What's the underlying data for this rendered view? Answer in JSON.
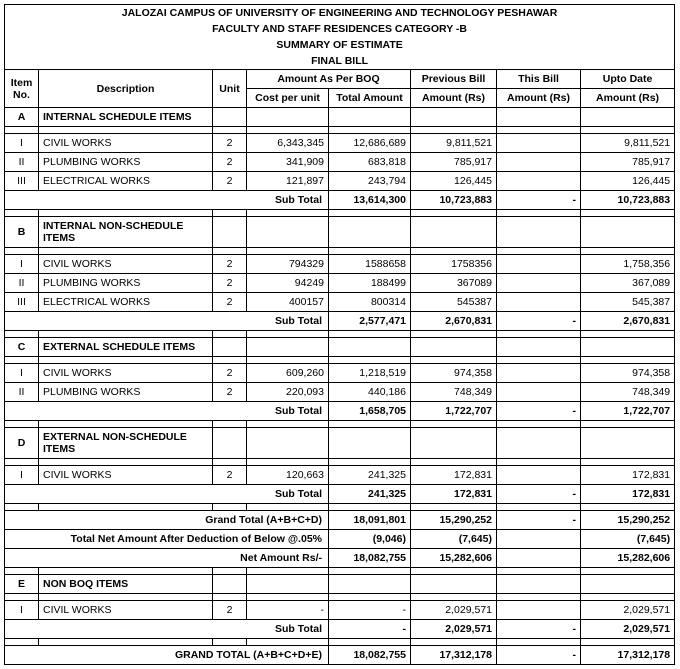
{
  "title1": "JALOZAI CAMPUS OF UNIVERSITY OF ENGINEERING AND TECHNOLOGY PESHAWAR",
  "title2": "FACULTY AND STAFF RESIDENCES CATEGORY -B",
  "title3": "SUMMARY OF ESTIMATE",
  "title4": "FINAL BILL",
  "colHeaders": {
    "itemNo": "Item No.",
    "desc": "Description",
    "unit": "Unit",
    "amountAsPerBOQ": "Amount As Per BOQ",
    "costPerUnit": "Cost per unit",
    "totalAmount": "Total Amount",
    "previousBill": "Previous Bill",
    "thisBill": "This Bill",
    "uptoDate": "Upto Date",
    "amountRs": "Amount (Rs)"
  },
  "sections": [
    {
      "id": "A",
      "title": "INTERNAL SCHEDULE ITEMS",
      "rows": [
        {
          "no": "I",
          "desc": "CIVIL WORKS",
          "unit": "2",
          "cpu": "6,343,345",
          "tot": "12,686,689",
          "prev": "9,811,521",
          "this": "",
          "upto": "9,811,521"
        },
        {
          "no": "II",
          "desc": "PLUMBING WORKS",
          "unit": "2",
          "cpu": "341,909",
          "tot": "683,818",
          "prev": "785,917",
          "this": "",
          "upto": "785,917"
        },
        {
          "no": "III",
          "desc": "ELECTRICAL WORKS",
          "unit": "2",
          "cpu": "121,897",
          "tot": "243,794",
          "prev": "126,445",
          "this": "",
          "upto": "126,445"
        }
      ],
      "subTotal": {
        "label": "Sub Total",
        "tot": "13,614,300",
        "prev": "10,723,883",
        "this": "-",
        "upto": "10,723,883"
      }
    },
    {
      "id": "B",
      "title": "INTERNAL NON-SCHEDULE ITEMS",
      "rows": [
        {
          "no": "I",
          "desc": "CIVIL WORKS",
          "unit": "2",
          "cpu": "794329",
          "tot": "1588658",
          "prev": "1758356",
          "this": "",
          "upto": "1,758,356"
        },
        {
          "no": "II",
          "desc": "PLUMBING WORKS",
          "unit": "2",
          "cpu": "94249",
          "tot": "188499",
          "prev": "367089",
          "this": "",
          "upto": "367,089"
        },
        {
          "no": "III",
          "desc": "ELECTRICAL WORKS",
          "unit": "2",
          "cpu": "400157",
          "tot": "800314",
          "prev": "545387",
          "this": "",
          "upto": "545,387"
        }
      ],
      "subTotal": {
        "label": "Sub Total",
        "tot": "2,577,471",
        "prev": "2,670,831",
        "this": "-",
        "upto": "2,670,831"
      }
    },
    {
      "id": "C",
      "title": "EXTERNAL SCHEDULE ITEMS",
      "rows": [
        {
          "no": "I",
          "desc": "CIVIL WORKS",
          "unit": "2",
          "cpu": "609,260",
          "tot": "1,218,519",
          "prev": "974,358",
          "this": "",
          "upto": "974,358"
        },
        {
          "no": "II",
          "desc": "PLUMBING WORKS",
          "unit": "2",
          "cpu": "220,093",
          "tot": "440,186",
          "prev": "748,349",
          "this": "",
          "upto": "748,349"
        }
      ],
      "subTotal": {
        "label": "Sub Total",
        "tot": "1,658,705",
        "prev": "1,722,707",
        "this": "-",
        "upto": "1,722,707"
      }
    },
    {
      "id": "D",
      "title": "EXTERNAL NON-SCHEDULE ITEMS",
      "rows": [
        {
          "no": "I",
          "desc": "CIVIL WORKS",
          "unit": "2",
          "cpu": "120,663",
          "tot": "241,325",
          "prev": "172,831",
          "this": "",
          "upto": "172,831"
        }
      ],
      "subTotal": {
        "label": "Sub Total",
        "tot": "241,325",
        "prev": "172,831",
        "this": "-",
        "upto": "172,831"
      }
    }
  ],
  "grandTotalABCD": {
    "label": "Grand Total (A+B+C+D)",
    "tot": "18,091,801",
    "prev": "15,290,252",
    "this": "-",
    "upto": "15,290,252"
  },
  "netDeduction": {
    "label": "Total Net Amount After Deduction of Below @.05%",
    "tot": "(9,046)",
    "prev": "(7,645)",
    "this": "",
    "upto": "(7,645)"
  },
  "netAmount": {
    "label": "Net Amount Rs/-",
    "tot": "18,082,755",
    "prev": "15,282,606",
    "this": "",
    "upto": "15,282,606"
  },
  "blankAfterNet": true,
  "sectionE": {
    "id": "E",
    "title": "NON BOQ ITEMS",
    "rows": [
      {
        "no": "I",
        "desc": "CIVIL WORKS",
        "unit": "2",
        "cpu": "-",
        "tot": "-",
        "prev": "2,029,571",
        "this": "",
        "upto": "2,029,571"
      }
    ],
    "subTotal": {
      "label": "Sub Total",
      "tot": "-",
      "prev": "2,029,571",
      "this": "-",
      "upto": "2,029,571"
    }
  },
  "grandTotalAll": {
    "label": "GRAND TOTAL (A+B+C+D+E)",
    "tot": "18,082,755",
    "prev": "17,312,178",
    "this": "-",
    "upto": "17,312,178"
  }
}
